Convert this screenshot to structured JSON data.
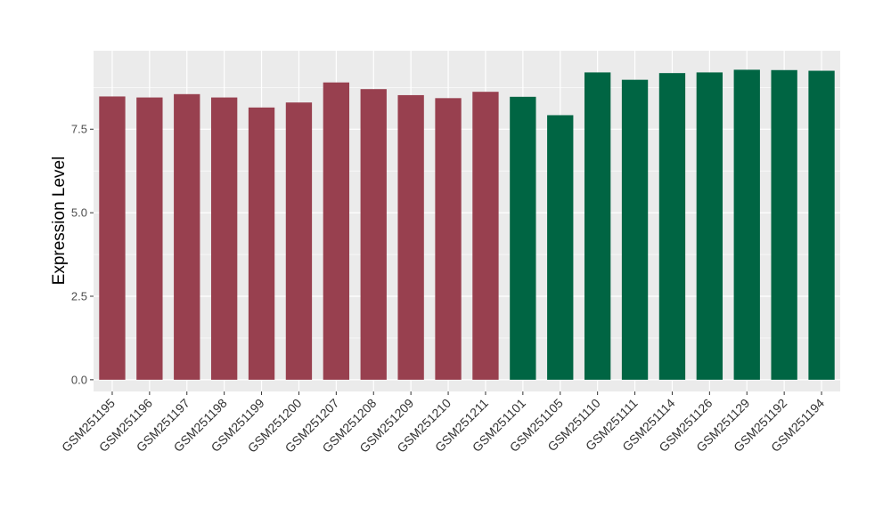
{
  "chart_data": {
    "type": "bar",
    "title": "",
    "xlabel": "",
    "ylabel": "Expression Level",
    "ylim": [
      -0.35,
      9.85
    ],
    "yticks": [
      0.0,
      2.5,
      5.0,
      7.5
    ],
    "ytick_labels": [
      "0.0",
      "2.5",
      "5.0",
      "7.5"
    ],
    "grid": true,
    "background": "#ebebeb",
    "categories": [
      "GSM251195",
      "GSM251196",
      "GSM251197",
      "GSM251198",
      "GSM251199",
      "GSM251200",
      "GSM251207",
      "GSM251208",
      "GSM251209",
      "GSM251210",
      "GSM251211",
      "GSM251101",
      "GSM251105",
      "GSM251110",
      "GSM251111",
      "GSM251114",
      "GSM251126",
      "GSM251129",
      "GSM251192",
      "GSM251194"
    ],
    "values": [
      8.48,
      8.45,
      8.55,
      8.45,
      8.15,
      8.3,
      8.9,
      8.7,
      8.52,
      8.43,
      8.62,
      8.47,
      7.92,
      9.2,
      8.98,
      9.18,
      9.2,
      9.28,
      9.27,
      9.25
    ],
    "groups": [
      "red",
      "red",
      "red",
      "red",
      "red",
      "red",
      "red",
      "red",
      "red",
      "red",
      "red",
      "green",
      "green",
      "green",
      "green",
      "green",
      "green",
      "green",
      "green",
      "green"
    ],
    "colors": {
      "red": "#98404f",
      "green": "#006543"
    }
  }
}
